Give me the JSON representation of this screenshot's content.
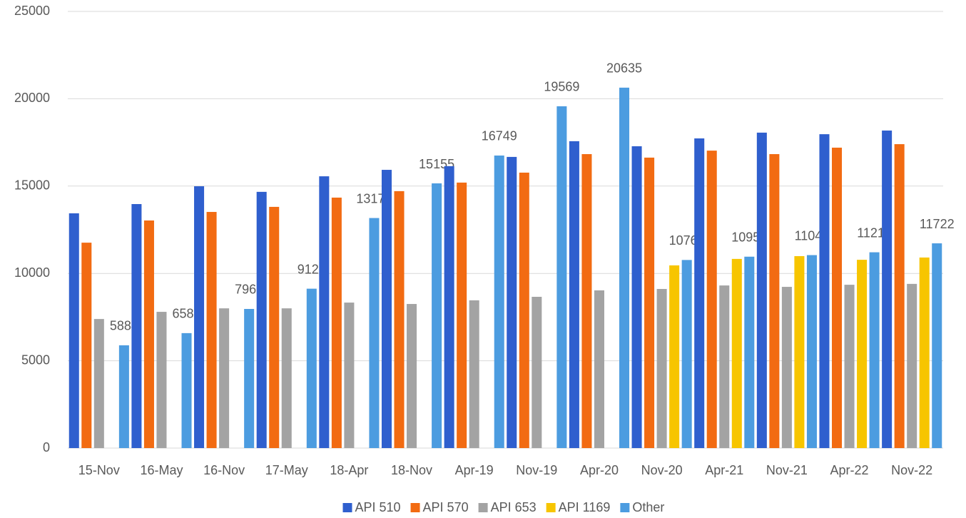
{
  "chart_data": {
    "type": "bar",
    "categories": [
      "15-Nov",
      "16-May",
      "16-Nov",
      "17-May",
      "18-Apr",
      "18-Nov",
      "Apr-19",
      "Nov-19",
      "Apr-20",
      "Nov-20",
      "Apr-21",
      "Nov-21",
      "Apr-22",
      "Nov-22"
    ],
    "series": [
      {
        "name": "API 510",
        "color": "#2f5fce",
        "values": [
          13440,
          13970,
          14990,
          14670,
          15560,
          15930,
          16140,
          16670,
          17570,
          17280,
          17730,
          18060,
          17970,
          18180
        ]
      },
      {
        "name": "API 570",
        "color": "#f26b12",
        "values": [
          11760,
          13030,
          13520,
          13810,
          14340,
          14710,
          15200,
          15770,
          16830,
          16630,
          17030,
          16830,
          17200,
          17400
        ]
      },
      {
        "name": "API 653",
        "color": "#a3a3a3",
        "values": [
          7390,
          7800,
          8000,
          8000,
          8330,
          8250,
          8460,
          8660,
          9030,
          9110,
          9310,
          9230,
          9350,
          9400
        ]
      },
      {
        "name": "API 1169",
        "color": "#f7c500",
        "values": [
          null,
          null,
          null,
          null,
          null,
          null,
          null,
          null,
          null,
          10460,
          10830,
          10990,
          10780,
          10910
        ]
      },
      {
        "name": "Other",
        "color": "#4c9ce0",
        "show_labels": true,
        "values": [
          5884,
          6581,
          7966,
          9125,
          13171,
          15155,
          16749,
          19569,
          20635,
          10769,
          10958,
          11048,
          11210,
          11722
        ]
      }
    ],
    "ylim": [
      0,
      25000
    ],
    "yticks": [
      0,
      5000,
      10000,
      15000,
      20000,
      25000
    ],
    "grid": true,
    "legend": "bottom"
  }
}
